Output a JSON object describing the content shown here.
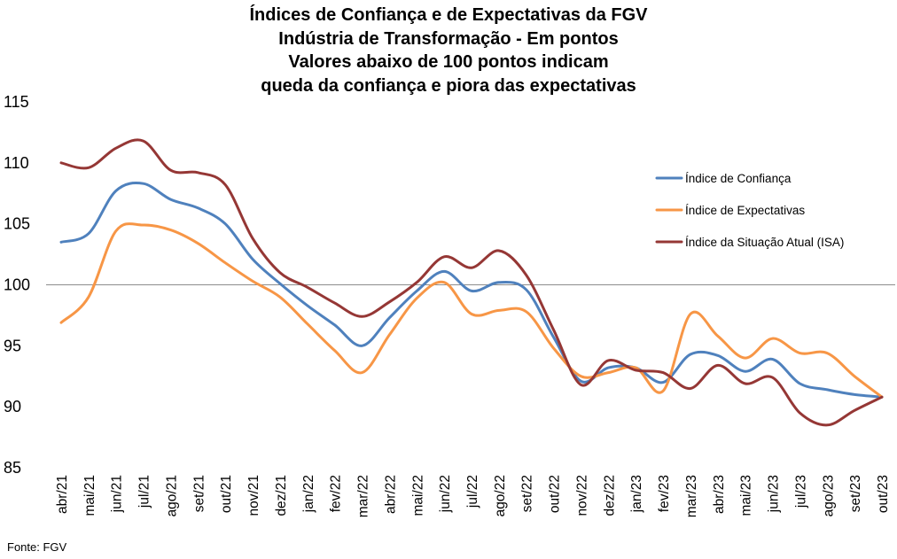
{
  "chart_data": {
    "type": "line",
    "title": [
      "Índices de Confiança e de Expectativas da FGV",
      "Indústria de Transformação - Em pontos",
      "Valores abaixo de 100 pontos indicam",
      "queda da confiança e piora das expectativas"
    ],
    "xlabel": "",
    "ylabel": "",
    "ylim": [
      85,
      115
    ],
    "yticks": [
      85,
      90,
      95,
      100,
      105,
      110,
      115
    ],
    "reference_line": 100,
    "grid": false,
    "legend_position": "right",
    "categories": [
      "abr/21",
      "mai/21",
      "jun/21",
      "jul/21",
      "ago/21",
      "set/21",
      "out/21",
      "nov/21",
      "dez/21",
      "jan/22",
      "fev/22",
      "mar/22",
      "abr/22",
      "mai/22",
      "jun/22",
      "jul/22",
      "ago/22",
      "set/22",
      "out/22",
      "nov/22",
      "dez/22",
      "jan/23",
      "fev/23",
      "mar/23",
      "abr/23",
      "mai/23",
      "jun/23",
      "jul/23",
      "ago/23",
      "set/23",
      "out/23"
    ],
    "series": [
      {
        "name": "Índice de Confiança",
        "color": "#4f81bd",
        "values": [
          103.5,
          104.2,
          107.7,
          108.3,
          107.0,
          106.3,
          105.0,
          102.1,
          100.1,
          98.3,
          96.7,
          95.0,
          97.3,
          99.5,
          101.1,
          99.5,
          100.2,
          99.6,
          95.7,
          92.1,
          93.2,
          93.2,
          92.0,
          94.3,
          94.2,
          92.9,
          93.9,
          91.9,
          91.4,
          91.0,
          90.8
        ]
      },
      {
        "name": "Índice de Expectativas",
        "color": "#f79646",
        "values": [
          96.9,
          99.0,
          104.4,
          104.9,
          104.5,
          103.4,
          101.8,
          100.3,
          99.0,
          96.8,
          94.6,
          92.8,
          95.9,
          98.9,
          100.2,
          97.6,
          97.9,
          97.8,
          94.8,
          92.5,
          92.8,
          93.2,
          91.3,
          97.6,
          95.8,
          94.0,
          95.6,
          94.4,
          94.4,
          92.5,
          90.8
        ]
      },
      {
        "name": "Índice da Situação Atual (ISA)",
        "color": "#953735",
        "values": [
          110.0,
          109.6,
          111.2,
          111.8,
          109.4,
          109.2,
          108.2,
          103.8,
          101.0,
          99.8,
          98.5,
          97.4,
          98.6,
          100.2,
          102.3,
          101.4,
          102.8,
          100.8,
          96.3,
          91.8,
          93.8,
          93.0,
          92.8,
          91.5,
          93.4,
          91.9,
          92.4,
          89.5,
          88.5,
          89.7,
          90.8
        ]
      }
    ]
  },
  "footer": {
    "source": "Fonte: FGV"
  }
}
